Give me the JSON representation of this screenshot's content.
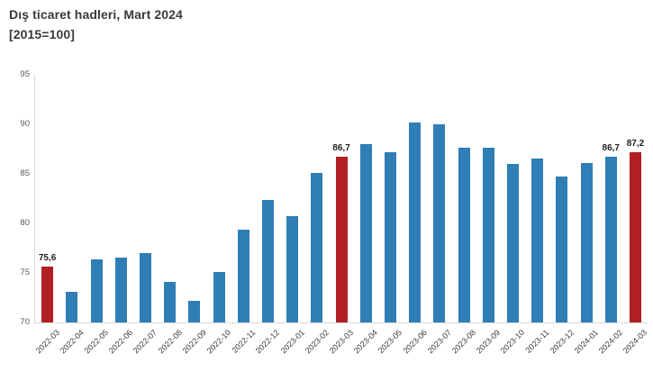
{
  "header": {
    "title": "Dış ticaret hadleri, Mart 2024",
    "subtitle": "[2015=100]"
  },
  "chart_data": {
    "type": "bar",
    "title": "Dış ticaret hadleri, Mart 2024",
    "subtitle": "[2015=100]",
    "categories": [
      "2022-03",
      "2022-04",
      "2022-05",
      "2022-06",
      "2022-07",
      "2022-08",
      "2022-09",
      "2022-10",
      "2022-11",
      "2022-12",
      "2023-01",
      "2023-02",
      "2023-03",
      "2023-04",
      "2023-05",
      "2023-06",
      "2023-07",
      "2023-08",
      "2023-09",
      "2023-10",
      "2023-11",
      "2023-12",
      "2024-01",
      "2024-02",
      "2024-03"
    ],
    "values": [
      75.6,
      73.1,
      76.4,
      76.5,
      77.0,
      74.1,
      72.2,
      75.1,
      79.4,
      82.4,
      80.7,
      85.1,
      86.7,
      88.0,
      87.2,
      90.2,
      90.0,
      87.6,
      87.6,
      86.0,
      86.5,
      84.7,
      86.1,
      86.7,
      87.2
    ],
    "bar_labels": {
      "0": "75,6",
      "12": "86,7",
      "23": "86,7",
      "24": "87,2"
    },
    "highlight_indices": [
      0,
      12,
      24
    ],
    "colors": {
      "bar": "#2F7EB5",
      "highlight_bar": "#B11F24",
      "axis_line": "#D9D9D9",
      "ytick_label": "#595959",
      "xtick_label": "#3D3D3D",
      "value_label": "#1F1F1F",
      "title_text": "#3A3A3A"
    },
    "ylim": [
      70,
      95
    ],
    "yticks": [
      70,
      75,
      80,
      85,
      90,
      95
    ],
    "grid": false,
    "legend_position": "none"
  }
}
